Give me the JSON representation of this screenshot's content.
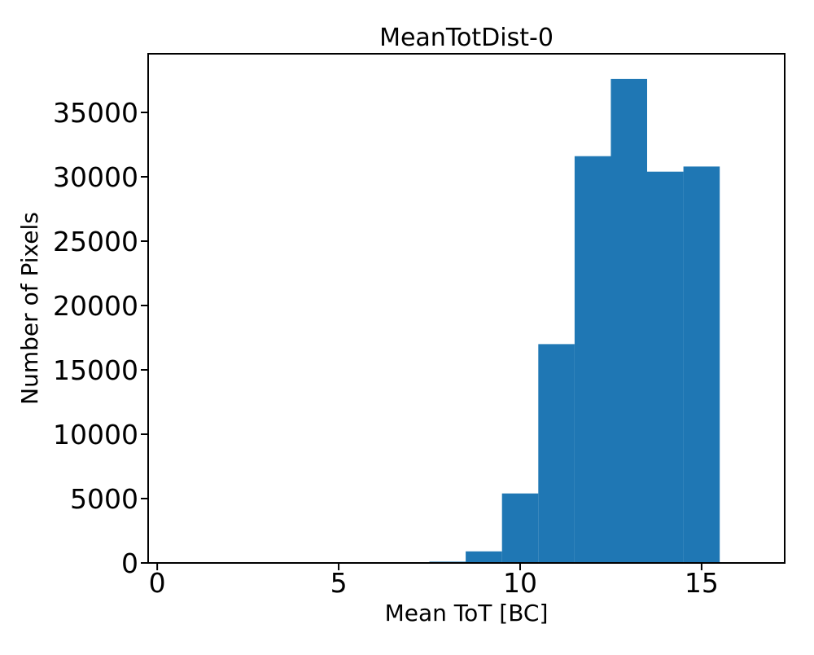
{
  "chart_data": {
    "type": "bar",
    "subtype": "histogram",
    "title": "MeanTotDist-0",
    "xlabel": "Mean ToT [BC]",
    "ylabel": "Number of Pixels",
    "bar_color": "#1f77b4",
    "bin_edges": [
      7.5,
      8.5,
      9.5,
      10.5,
      11.5,
      12.5,
      13.5,
      14.5,
      15.5
    ],
    "counts": [
      100,
      900,
      5400,
      17000,
      31600,
      37600,
      30400,
      30800
    ],
    "xticks": [
      0,
      5,
      10,
      15
    ],
    "yticks": [
      0,
      5000,
      10000,
      15000,
      20000,
      25000,
      30000,
      35000
    ],
    "xlim": [
      -0.25,
      17.29
    ],
    "ylim": [
      0,
      39557
    ],
    "grid": false,
    "legend_position": "none"
  }
}
